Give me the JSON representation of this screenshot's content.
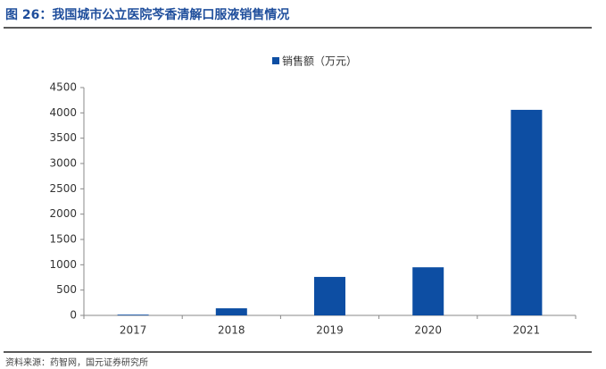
{
  "chart_data": {
    "type": "bar",
    "title": "图 26：我国城市公立医院芩香清解口服液销售情况",
    "categories": [
      "2017",
      "2018",
      "2019",
      "2020",
      "2021"
    ],
    "series": [
      {
        "name": "销售额（万元）",
        "color": "#0d4ea3",
        "values": [
          15,
          140,
          760,
          950,
          4060
        ]
      }
    ],
    "ylim": [
      0,
      4500
    ],
    "yticks": [
      0,
      500,
      1000,
      1500,
      2000,
      2500,
      3000,
      3500,
      4000,
      4500
    ],
    "legend": "top",
    "source": "资料来源：药智网，国元证券研究所"
  }
}
